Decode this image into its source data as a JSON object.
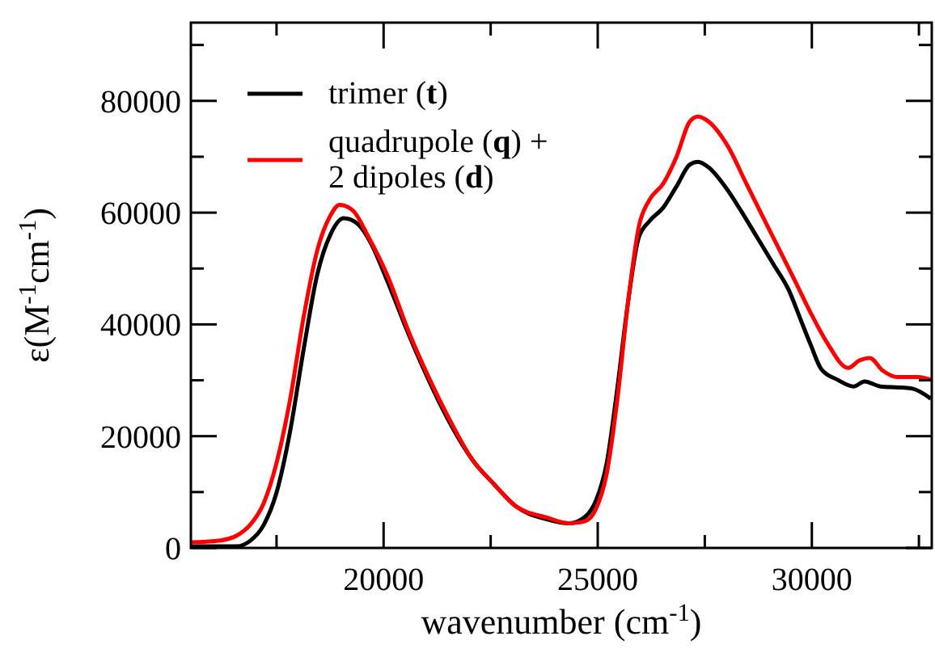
{
  "chart_data": {
    "type": "line",
    "xlabel": "wavenumber (cm$^{-1}$)",
    "ylabel": "ε(M$^{-1}$cm$^{-1}$)",
    "xlim": [
      15500,
      32800
    ],
    "ylim": [
      0,
      94000
    ],
    "xticks": [
      {
        "value": 17500,
        "label": null
      },
      20000,
      {
        "value": 22500,
        "label": null
      },
      25000,
      {
        "value": 27500,
        "label": null
      },
      30000,
      {
        "value": 32500,
        "label": null
      }
    ],
    "yticks": [
      0,
      {
        "value": 10000,
        "label": null
      },
      20000,
      {
        "value": 30000,
        "label": null
      },
      40000,
      {
        "value": 50000,
        "label": null
      },
      60000,
      {
        "value": 70000,
        "label": null
      },
      80000,
      {
        "value": 90000,
        "label": null
      }
    ],
    "legend": "top left",
    "grid": false,
    "line_style": "solid",
    "marker": "none",
    "series": [
      {
        "name": "trimer (t)",
        "color": "#000000",
        "x": [
          15500,
          16570,
          16880,
          17200,
          17500,
          17820,
          18130,
          18450,
          18760,
          19070,
          19390,
          19700,
          20080,
          20580,
          21080,
          21580,
          22080,
          22580,
          23080,
          23830,
          24340,
          24710,
          24960,
          25210,
          25460,
          25710,
          25960,
          26210,
          26530,
          26840,
          27150,
          27340,
          27590,
          27970,
          28340,
          28720,
          29100,
          29470,
          29720,
          29970,
          30220,
          30600,
          30980,
          31230,
          31600,
          32100,
          32350,
          32780
        ],
        "values": [
          300,
          300,
          1250,
          4100,
          9900,
          21000,
          35400,
          48900,
          56100,
          59000,
          58000,
          54600,
          47900,
          38300,
          29600,
          21900,
          15700,
          11400,
          7500,
          5100,
          4400,
          5600,
          8500,
          15200,
          28700,
          44100,
          55600,
          58500,
          60900,
          64700,
          68600,
          69100,
          68100,
          64700,
          60400,
          55600,
          50800,
          46000,
          41200,
          36400,
          32000,
          30100,
          28900,
          29800,
          28900,
          28700,
          28500,
          26700
        ]
      },
      {
        "name": "quadrupole (q) + 2 dipoles (d)",
        "color": "#ff0000",
        "x": [
          15500,
          16190,
          16570,
          16880,
          17200,
          17500,
          17820,
          18130,
          18450,
          18760,
          18970,
          19280,
          19650,
          20080,
          20580,
          21080,
          21580,
          22080,
          22580,
          23080,
          23830,
          24340,
          24710,
          24960,
          25210,
          25460,
          25710,
          25960,
          26210,
          26530,
          26840,
          27150,
          27340,
          27590,
          28030,
          28470,
          28840,
          29220,
          29600,
          29970,
          30350,
          30850,
          31100,
          31350,
          31660,
          31980,
          32480,
          32780
        ],
        "values": [
          1000,
          1350,
          2200,
          4100,
          8000,
          15200,
          26700,
          41200,
          53200,
          59500,
          61400,
          60400,
          55600,
          48900,
          38800,
          30100,
          22400,
          15700,
          11400,
          7500,
          5400,
          4400,
          4800,
          7000,
          13300,
          26700,
          44100,
          57500,
          62300,
          65200,
          70000,
          76300,
          77200,
          76300,
          72000,
          65200,
          59500,
          53700,
          47900,
          42100,
          36800,
          32200,
          33500,
          34000,
          31700,
          30600,
          30600,
          30100
        ]
      }
    ]
  }
}
